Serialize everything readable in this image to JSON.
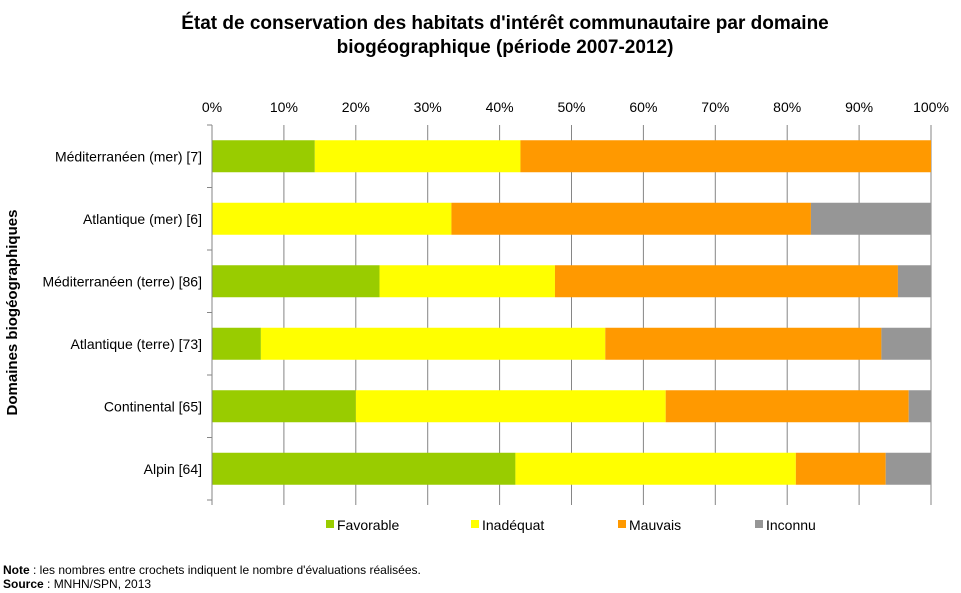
{
  "title_line1": "État de conservation des habitats d'intérêt communautaire par domaine",
  "title_line2": "biogéographique (période 2007-2012)",
  "chart_data": {
    "type": "bar",
    "orientation": "horizontal",
    "stacked": "percent",
    "ylabel": "Domaines biogéographiques",
    "xlim": [
      0,
      100
    ],
    "x_ticks": [
      "0%",
      "10%",
      "20%",
      "30%",
      "40%",
      "50%",
      "60%",
      "70%",
      "80%",
      "90%",
      "100%"
    ],
    "x_axis_position": "top",
    "grid": true,
    "legend_position": "bottom",
    "categories": [
      "Méditerranéen (mer) [7]",
      "Atlantique (mer) [6]",
      "Méditerranéen (terre) [86]",
      "Atlantique (terre) [73]",
      "Continental [65]",
      "Alpin [64]"
    ],
    "series": [
      {
        "name": "Favorable",
        "color": "#99cc00",
        "values": [
          14.3,
          0.0,
          23.3,
          6.8,
          20.0,
          42.2
        ]
      },
      {
        "name": "Inadéquat",
        "color": "#ffff00",
        "values": [
          28.6,
          33.3,
          24.4,
          47.9,
          43.1,
          39.0
        ]
      },
      {
        "name": "Mauvais",
        "color": "#ff9900",
        "values": [
          57.1,
          50.0,
          47.7,
          38.4,
          33.8,
          12.5
        ]
      },
      {
        "name": "Inconnu",
        "color": "#969696",
        "values": [
          0.0,
          16.7,
          4.6,
          6.9,
          3.1,
          6.3
        ]
      }
    ]
  },
  "note_label": "Note",
  "note_text": " : les nombres entre crochets indiquent le nombre d'évaluations réalisées.",
  "source_label": "Source",
  "source_text": " : MNHN/SPN, 2013"
}
